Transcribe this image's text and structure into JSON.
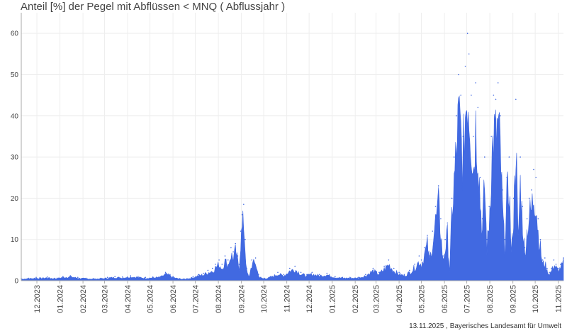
{
  "title": "Anteil [%] der Pegel mit Abflüssen < MNQ ( Abflussjahr )",
  "footer": "13.11.2025 , Bayerisches Landesamt für Umwelt",
  "colors": {
    "series": "#4169e1",
    "grid": "#eeeeee",
    "axis": "#aaaaaa",
    "text": "#444444"
  },
  "chart_data": {
    "type": "area",
    "xlabel": "",
    "ylabel": "",
    "ylim": [
      0,
      65
    ],
    "yticks": [
      0,
      10,
      20,
      30,
      40,
      50,
      60
    ],
    "xlim": [
      "2023-11-10",
      "2025-11-08"
    ],
    "grid": true,
    "x_ticks": [
      {
        "date": "2023-12-01",
        "label": "12.2023"
      },
      {
        "date": "2024-01-01",
        "label": "01.2024"
      },
      {
        "date": "2024-02-01",
        "label": "02.2024"
      },
      {
        "date": "2024-03-01",
        "label": "03.2024"
      },
      {
        "date": "2024-04-01",
        "label": "04.2024"
      },
      {
        "date": "2024-05-01",
        "label": "05.2024"
      },
      {
        "date": "2024-06-01",
        "label": "06.2024"
      },
      {
        "date": "2024-07-01",
        "label": "07.2024"
      },
      {
        "date": "2024-08-01",
        "label": "08.2024"
      },
      {
        "date": "2024-09-01",
        "label": "09.2024"
      },
      {
        "date": "2024-10-01",
        "label": "10.2024"
      },
      {
        "date": "2024-11-01",
        "label": "11.2024"
      },
      {
        "date": "2024-12-01",
        "label": "12.2024"
      },
      {
        "date": "2025-01-01",
        "label": "01.2025"
      },
      {
        "date": "2025-02-01",
        "label": "02.2025"
      },
      {
        "date": "2025-03-01",
        "label": "03.2025"
      },
      {
        "date": "2025-04-01",
        "label": "04.2025"
      },
      {
        "date": "2025-05-01",
        "label": "05.2025"
      },
      {
        "date": "2025-06-01",
        "label": "06.2025"
      },
      {
        "date": "2025-07-01",
        "label": "07.2025"
      },
      {
        "date": "2025-08-01",
        "label": "08.2025"
      },
      {
        "date": "2025-09-01",
        "label": "09.2025"
      },
      {
        "date": "2025-10-01",
        "label": "10.2025"
      },
      {
        "date": "2025-11-01",
        "label": "11.2025"
      }
    ],
    "series": [
      {
        "x": [
          "2023-11-10",
          "2023-11-20",
          "2023-11-30",
          "2023-12-05",
          "2023-12-15",
          "2023-12-25",
          "2024-01-05",
          "2024-01-15",
          "2024-01-25",
          "2024-02-05",
          "2024-02-15",
          "2024-02-25",
          "2024-03-05",
          "2024-03-15",
          "2024-03-25",
          "2024-04-05",
          "2024-04-15",
          "2024-04-25",
          "2024-05-05",
          "2024-05-15",
          "2024-05-22",
          "2024-05-28",
          "2024-06-01",
          "2024-06-10",
          "2024-06-20",
          "2024-06-28",
          "2024-07-05",
          "2024-07-12",
          "2024-07-18",
          "2024-07-24",
          "2024-07-28",
          "2024-08-02",
          "2024-08-06",
          "2024-08-10",
          "2024-08-14",
          "2024-08-18",
          "2024-08-21",
          "2024-08-24",
          "2024-08-27",
          "2024-08-29",
          "2024-08-31",
          "2024-09-02",
          "2024-09-04",
          "2024-09-06",
          "2024-09-08",
          "2024-09-11",
          "2024-09-15",
          "2024-09-20",
          "2024-09-24",
          "2024-09-27",
          "2024-10-02",
          "2024-10-10",
          "2024-10-20",
          "2024-10-28",
          "2024-11-05",
          "2024-11-12",
          "2024-11-20",
          "2024-11-28",
          "2024-12-05",
          "2024-12-15",
          "2024-12-25",
          "2025-01-05",
          "2025-01-15",
          "2025-01-25",
          "2025-02-05",
          "2025-02-15",
          "2025-02-25",
          "2025-03-05",
          "2025-03-12",
          "2025-03-18",
          "2025-03-25",
          "2025-04-01",
          "2025-04-08",
          "2025-04-15",
          "2025-04-22",
          "2025-04-28",
          "2025-05-01",
          "2025-05-05",
          "2025-05-09",
          "2025-05-12",
          "2025-05-16",
          "2025-05-20",
          "2025-05-24",
          "2025-05-27",
          "2025-05-30",
          "2025-06-02",
          "2025-06-05",
          "2025-06-08",
          "2025-06-11",
          "2025-06-14",
          "2025-06-17",
          "2025-06-20",
          "2025-06-23",
          "2025-06-26",
          "2025-06-29",
          "2025-07-02",
          "2025-07-04",
          "2025-07-07",
          "2025-07-10",
          "2025-07-13",
          "2025-07-16",
          "2025-07-19",
          "2025-07-22",
          "2025-07-25",
          "2025-07-28",
          "2025-07-31",
          "2025-08-03",
          "2025-08-06",
          "2025-08-09",
          "2025-08-12",
          "2025-08-15",
          "2025-08-18",
          "2025-08-21",
          "2025-08-24",
          "2025-08-27",
          "2025-08-30",
          "2025-09-02",
          "2025-09-05",
          "2025-09-08",
          "2025-09-11",
          "2025-09-14",
          "2025-09-17",
          "2025-09-20",
          "2025-09-23",
          "2025-09-26",
          "2025-09-29",
          "2025-10-02",
          "2025-10-05",
          "2025-10-08",
          "2025-10-11",
          "2025-10-14",
          "2025-10-17",
          "2025-10-20",
          "2025-10-23",
          "2025-10-26",
          "2025-10-29",
          "2025-11-01",
          "2025-11-04",
          "2025-11-08"
        ],
        "values": [
          0.5,
          0.6,
          0.8,
          0.7,
          0.9,
          0.6,
          1.0,
          1.2,
          0.8,
          0.6,
          0.5,
          0.6,
          0.8,
          1.0,
          0.9,
          1.2,
          1.0,
          0.8,
          0.9,
          1.0,
          2.0,
          1.5,
          1.0,
          0.5,
          0.5,
          1.0,
          1.5,
          1.8,
          2.5,
          3.0,
          4.0,
          5.0,
          4.0,
          6.0,
          5.0,
          8.0,
          7.0,
          9.0,
          6.0,
          4.0,
          12.0,
          16.0,
          18.5,
          10.0,
          3.0,
          1.0,
          5.0,
          5.5,
          1.5,
          0.8,
          0.6,
          1.0,
          2.0,
          1.5,
          3.0,
          3.5,
          2.0,
          1.5,
          2.0,
          1.5,
          1.8,
          1.0,
          0.8,
          0.8,
          0.8,
          1.5,
          3.0,
          2.0,
          3.5,
          5.0,
          3.0,
          2.0,
          1.5,
          2.5,
          4.0,
          6.0,
          5.0,
          8.0,
          11.0,
          6.0,
          12.0,
          18.0,
          23.0,
          15.0,
          6.0,
          10.0,
          14.0,
          3.0,
          20.0,
          30.0,
          40.0,
          50.0,
          45.0,
          35.0,
          52.0,
          60.0,
          55.0,
          45.0,
          35.0,
          48.0,
          42.0,
          25.0,
          15.0,
          30.0,
          10.0,
          18.0,
          35.0,
          45.0,
          44.0,
          48.0,
          40.0,
          22.0,
          10.0,
          25.0,
          30.0,
          8.0,
          20.0,
          44.0,
          12.0,
          30.0,
          18.0,
          8.0,
          15.0,
          20.0,
          22.0,
          27.0,
          25.0,
          15.0,
          10.0,
          5.0,
          5.5,
          3.0,
          2.0,
          3.0,
          5.0,
          4.0,
          3.0,
          4.0,
          5.5
        ]
      }
    ]
  }
}
